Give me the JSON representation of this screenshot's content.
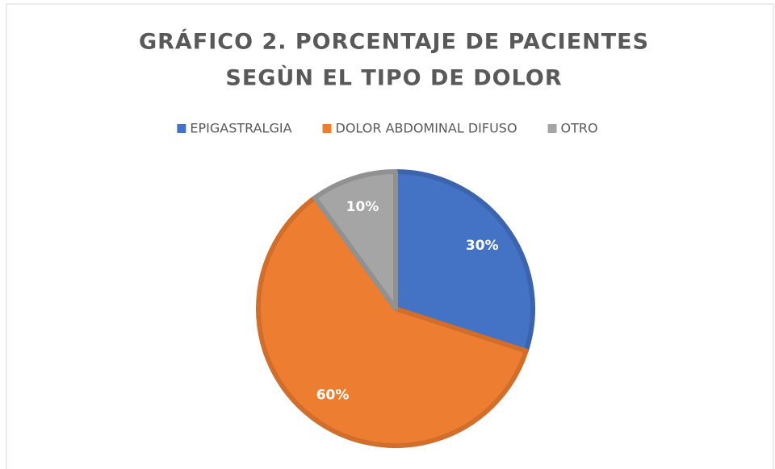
{
  "chart_data": {
    "type": "pie",
    "title": [
      "GRÁFICO 2. PORCENTAJE DE PACIENTES",
      "SEGÙN EL TIPO DE DOLOR"
    ],
    "categories": [
      "EPIGASTRALGIA",
      "DOLOR ABDOMINAL DIFUSO",
      "OTRO"
    ],
    "values": [
      30,
      60,
      10
    ],
    "value_labels": [
      "30%",
      "60%",
      "10%"
    ],
    "colors": [
      "#4472c4",
      "#ed7d31",
      "#a5a5a5"
    ],
    "legend": "top"
  }
}
